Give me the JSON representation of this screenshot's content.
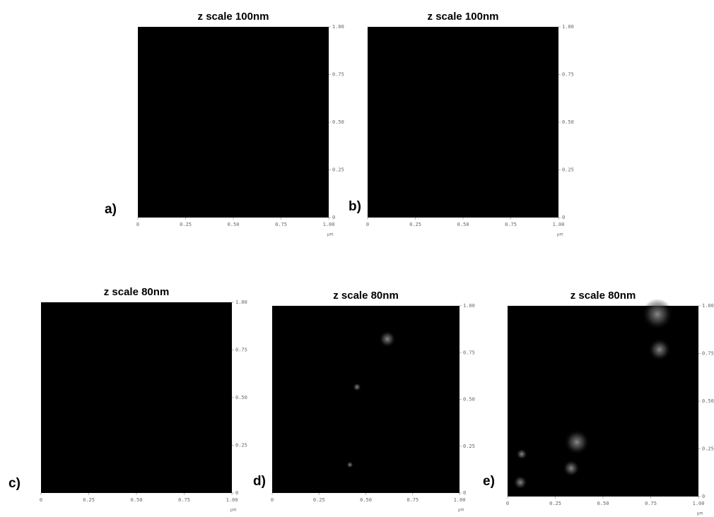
{
  "panels": [
    {
      "label": "a)",
      "title": "z scale 100nm",
      "xticks": [
        "0",
        "0.25",
        "0.50",
        "0.75",
        "1.00"
      ],
      "yticks": [
        "0",
        "0.25",
        "0.50",
        "0.75",
        "1.00"
      ],
      "unit": "µm"
    },
    {
      "label": "b)",
      "title": "z scale 100nm",
      "xticks": [
        "0",
        "0.25",
        "0.50",
        "0.75",
        "1.00"
      ],
      "yticks": [
        "0",
        "0.25",
        "0.50",
        "0.75",
        "1.00"
      ],
      "unit": "µm"
    },
    {
      "label": "c)",
      "title": "z scale 80nm",
      "xticks": [
        "0",
        "0.25",
        "0.50",
        "0.75",
        "1.00"
      ],
      "yticks": [
        "0",
        "0.25",
        "0.50",
        "0.75",
        "1.00"
      ],
      "unit": "µm"
    },
    {
      "label": "d)",
      "title": "z scale 80nm",
      "xticks": [
        "0",
        "0.25",
        "0.50",
        "0.75",
        "1.00"
      ],
      "yticks": [
        "0",
        "0.25",
        "0.50",
        "0.75",
        "1.00"
      ],
      "unit": "µm"
    },
    {
      "label": "e)",
      "title": "z scale 80nm",
      "xticks": [
        "0",
        "0.25",
        "0.50",
        "0.75",
        "1.00"
      ],
      "yticks": [
        "0",
        "0.25",
        "0.50",
        "0.75",
        "1.00"
      ],
      "unit": "µm"
    }
  ]
}
